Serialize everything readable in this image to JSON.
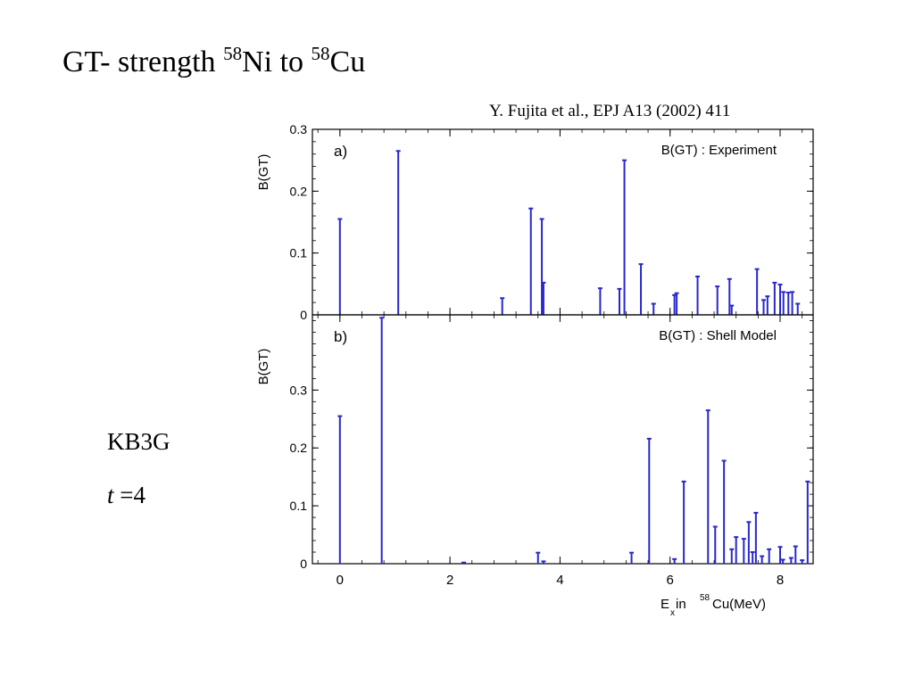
{
  "slide": {
    "title_prefix": "GT- strength ",
    "title_mass1": "58",
    "title_nuc1": "Ni to ",
    "title_mass2": "58",
    "title_nuc2": "Cu",
    "citation": "Y. Fujita et al., EPJ A13 (2002) 411",
    "model_name": "KB3G",
    "truncation_var": "t",
    "truncation_rest": " =4"
  },
  "colors": {
    "stem": "#2828cc",
    "axis": "#000000"
  },
  "chart_data": [
    {
      "type": "bar",
      "panel_label": "a)",
      "legend": "B(GT) : Experiment",
      "ylabel": "B(GT)",
      "xlim": [
        -0.5,
        8.6
      ],
      "ylim": [
        0,
        0.3
      ],
      "yticks": [
        0,
        0.1,
        0.2,
        0.3
      ],
      "yticklabels": [
        "0",
        "0.1",
        "0.2",
        "0.3"
      ],
      "xticks": [
        0,
        2,
        4,
        6,
        8
      ],
      "grid": false,
      "x": [
        0.0,
        1.06,
        2.95,
        3.47,
        3.67,
        3.7,
        4.73,
        5.08,
        5.17,
        5.47,
        5.7,
        6.08,
        6.12,
        6.5,
        6.86,
        7.08,
        7.12,
        7.58,
        7.7,
        7.77,
        7.9,
        8.0,
        8.06,
        8.15,
        8.22,
        8.32
      ],
      "values": [
        0.155,
        0.265,
        0.027,
        0.172,
        0.155,
        0.052,
        0.043,
        0.042,
        0.25,
        0.082,
        0.018,
        0.032,
        0.035,
        0.062,
        0.046,
        0.058,
        0.015,
        0.074,
        0.024,
        0.03,
        0.052,
        0.049,
        0.037,
        0.036,
        0.037,
        0.018
      ]
    },
    {
      "type": "bar",
      "panel_label": "b)",
      "legend": "B(GT) : Shell Model",
      "ylabel": "B(GT)",
      "xlabel_main": "E",
      "xlabel_sub": "x",
      "xlabel_mid": " in ",
      "xlabel_sup": "58",
      "xlabel_tail": "Cu(MeV)",
      "xlim": [
        -0.5,
        8.6
      ],
      "ylim": [
        0,
        0.43
      ],
      "yticks": [
        0,
        0.1,
        0.2,
        0.3
      ],
      "yticklabels": [
        "0",
        "0.1",
        "0.2",
        "0.3"
      ],
      "xticks": [
        0,
        2,
        4,
        6,
        8
      ],
      "xticklabels": [
        "0",
        "2",
        "4",
        "6",
        "8"
      ],
      "grid": false,
      "x": [
        0.0,
        0.76,
        2.25,
        3.6,
        3.7,
        5.3,
        5.62,
        6.08,
        6.25,
        6.69,
        6.82,
        6.98,
        7.12,
        7.2,
        7.34,
        7.43,
        7.5,
        7.56,
        7.67,
        7.8,
        8.0,
        8.05,
        8.2,
        8.28,
        8.4,
        8.5
      ],
      "values": [
        0.255,
        0.425,
        0.002,
        0.019,
        0.004,
        0.019,
        0.216,
        0.008,
        0.142,
        0.265,
        0.064,
        0.178,
        0.025,
        0.046,
        0.043,
        0.072,
        0.02,
        0.088,
        0.013,
        0.025,
        0.029,
        0.007,
        0.01,
        0.03,
        0.006,
        0.142
      ]
    }
  ]
}
